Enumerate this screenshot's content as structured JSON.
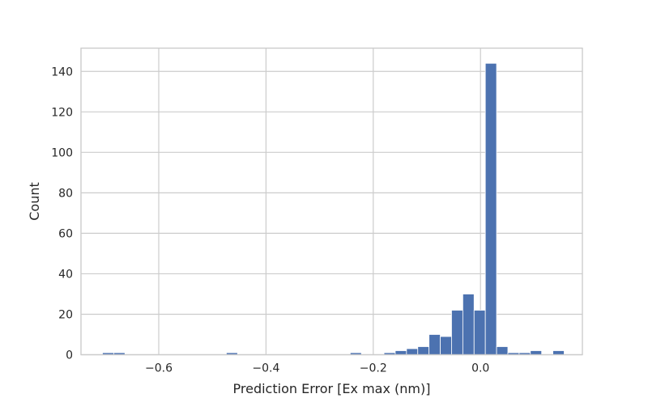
{
  "chart_data": {
    "type": "bar",
    "subtype": "histogram",
    "xlabel": "Prediction Error [Ex max (nm)]",
    "ylabel": "Count",
    "xlim": [
      -0.745,
      0.19
    ],
    "ylim": [
      0,
      151.5
    ],
    "x_ticks": [
      -0.6,
      -0.4,
      -0.2,
      0.0
    ],
    "x_tick_labels": [
      "−0.6",
      "−0.4",
      "−0.2",
      "0.0"
    ],
    "y_ticks": [
      0,
      20,
      40,
      60,
      80,
      100,
      120,
      140
    ],
    "y_tick_labels": [
      "0",
      "20",
      "40",
      "60",
      "80",
      "100",
      "120",
      "140"
    ],
    "grid": true,
    "bar_color": "#4c72b0",
    "bin_edges": [
      -0.705,
      -0.684,
      -0.663,
      -0.642,
      -0.621,
      -0.6,
      -0.579,
      -0.558,
      -0.537,
      -0.516,
      -0.495,
      -0.474,
      -0.453,
      -0.432,
      -0.411,
      -0.39,
      -0.369,
      -0.348,
      -0.327,
      -0.306,
      -0.285,
      -0.264,
      -0.243,
      -0.222,
      -0.201,
      -0.18,
      -0.159,
      -0.138,
      -0.117,
      -0.096,
      -0.075,
      -0.054,
      -0.033,
      -0.012,
      0.009,
      0.03,
      0.051,
      0.072,
      0.093,
      0.114,
      0.135,
      0.156
    ],
    "counts": [
      1,
      1,
      0,
      0,
      0,
      0,
      0,
      0,
      0,
      0,
      0,
      1,
      0,
      0,
      0,
      0,
      0,
      0,
      0,
      0,
      0,
      0,
      1,
      0,
      0,
      1,
      2,
      3,
      4,
      10,
      9,
      22,
      30,
      22,
      144,
      4,
      1,
      1,
      2,
      0,
      2
    ]
  }
}
